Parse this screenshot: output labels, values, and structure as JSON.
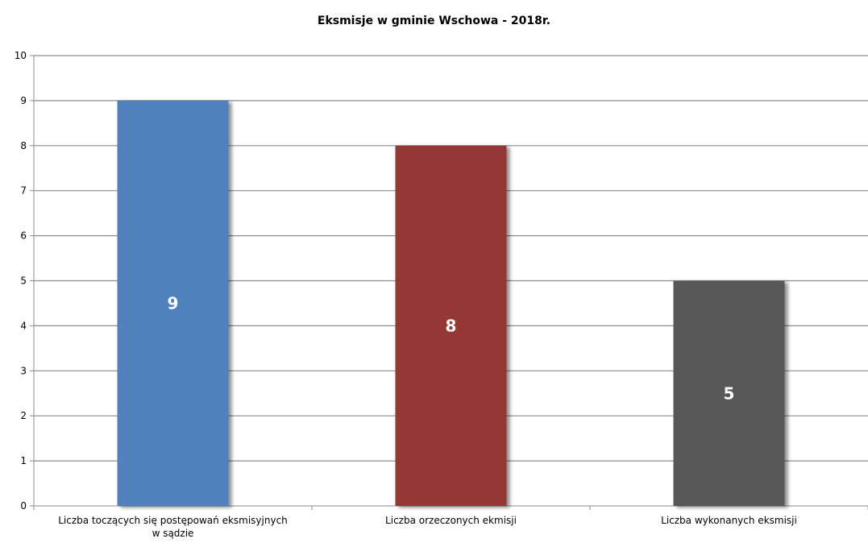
{
  "chart_data": {
    "type": "bar",
    "title": "Eksmisje w gminie Wschowa - 2018r.",
    "categories": [
      [
        "Liczba toczących się postępowań eksmisyjnych",
        "w sądzie"
      ],
      [
        "Liczba orzeczonych ekmisji"
      ],
      [
        "Liczba wykonanych eksmisji"
      ]
    ],
    "values": [
      9,
      8,
      5
    ],
    "colors": [
      "#4f81bd",
      "#953735",
      "#595959"
    ],
    "xlabel": "",
    "ylabel": "",
    "ylim": [
      0,
      10
    ],
    "yticks": [
      0,
      1,
      2,
      3,
      4,
      5,
      6,
      7,
      8,
      9,
      10
    ],
    "grid": true,
    "legend": "none",
    "data_labels": true
  }
}
